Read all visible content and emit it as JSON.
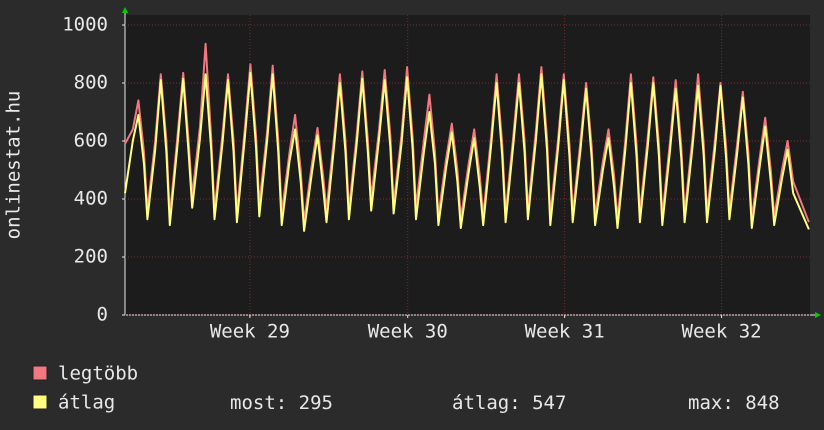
{
  "chart_data": {
    "type": "line",
    "ylabel": "onlinestat.hu",
    "x": [
      0,
      0.35,
      0.6,
      0.85,
      1,
      1.35,
      1.6,
      1.85,
      2,
      2.35,
      2.6,
      2.85,
      3,
      3.35,
      3.6,
      3.85,
      4,
      4.35,
      4.6,
      4.85,
      5,
      5.35,
      5.6,
      5.85,
      6,
      6.35,
      6.6,
      6.85,
      7,
      7.35,
      7.6,
      7.85,
      8,
      8.35,
      8.6,
      8.85,
      9,
      9.35,
      9.6,
      9.85,
      10,
      10.35,
      10.6,
      10.85,
      11,
      11.35,
      11.6,
      11.85,
      12,
      12.35,
      12.6,
      12.85,
      13,
      13.35,
      13.6,
      13.85,
      14,
      14.35,
      14.6,
      14.85,
      15,
      15.35,
      15.6,
      15.85,
      16,
      16.35,
      16.6,
      16.85,
      17,
      17.35,
      17.6,
      17.85,
      18,
      18.35,
      18.6,
      18.85,
      19,
      19.35,
      19.6,
      19.85,
      20,
      20.35,
      20.6,
      20.85,
      21,
      21.35,
      21.6,
      21.85,
      22,
      22.35,
      22.6,
      22.85,
      23,
      23.35,
      23.6,
      23.85,
      24,
      24.35,
      24.6,
      24.85,
      25,
      25.35,
      25.6,
      25.85,
      26,
      26.35,
      26.6,
      26.85,
      27,
      27.35,
      27.6,
      27.85,
      28,
      28.35,
      28.6,
      28.85,
      29,
      29.35,
      29.6,
      29.85,
      30.55
    ],
    "series": [
      {
        "name": "legtöbb",
        "color": "#f0787e",
        "values": [
          590,
          640,
          740,
          560,
          360,
          600,
          830,
          600,
          340,
          620,
          835,
          590,
          410,
          650,
          935,
          610,
          360,
          620,
          830,
          600,
          350,
          640,
          865,
          620,
          380,
          630,
          860,
          600,
          350,
          560,
          690,
          500,
          320,
          520,
          645,
          480,
          360,
          620,
          830,
          600,
          360,
          620,
          840,
          600,
          400,
          640,
          845,
          620,
          380,
          620,
          855,
          610,
          370,
          600,
          760,
          560,
          340,
          540,
          660,
          500,
          330,
          520,
          640,
          480,
          340,
          610,
          830,
          590,
          350,
          620,
          830,
          600,
          360,
          630,
          855,
          610,
          340,
          610,
          830,
          590,
          350,
          600,
          800,
          580,
          340,
          530,
          640,
          480,
          330,
          600,
          830,
          590,
          350,
          610,
          820,
          590,
          340,
          600,
          810,
          580,
          350,
          610,
          830,
          590,
          350,
          600,
          800,
          580,
          360,
          590,
          770,
          560,
          330,
          540,
          680,
          500,
          340,
          500,
          600,
          460,
          320
        ]
      },
      {
        "name": "átlag",
        "color": "#ffff80",
        "values": [
          420,
          600,
          690,
          520,
          330,
          570,
          810,
          560,
          310,
          590,
          815,
          550,
          370,
          610,
          830,
          570,
          330,
          590,
          810,
          560,
          320,
          610,
          835,
          580,
          340,
          600,
          830,
          560,
          310,
          530,
          640,
          460,
          290,
          490,
          620,
          440,
          320,
          590,
          800,
          560,
          330,
          590,
          815,
          560,
          360,
          610,
          810,
          580,
          350,
          590,
          820,
          570,
          330,
          560,
          700,
          520,
          310,
          510,
          630,
          460,
          300,
          490,
          610,
          440,
          310,
          580,
          800,
          550,
          320,
          590,
          800,
          560,
          330,
          600,
          830,
          570,
          310,
          580,
          810,
          550,
          320,
          570,
          780,
          540,
          310,
          500,
          610,
          440,
          300,
          570,
          800,
          550,
          320,
          580,
          800,
          550,
          310,
          570,
          780,
          540,
          320,
          580,
          790,
          550,
          320,
          570,
          790,
          540,
          330,
          560,
          750,
          520,
          300,
          510,
          650,
          460,
          310,
          470,
          570,
          420,
          295
        ]
      }
    ],
    "xlim": [
      0,
      30.6
    ],
    "xticks": [
      {
        "value": 5.58,
        "label": "Week 29"
      },
      {
        "value": 12.63,
        "label": "Week 30"
      },
      {
        "value": 19.64,
        "label": "Week 31"
      },
      {
        "value": 26.65,
        "label": "Week 32"
      }
    ],
    "ylim": [
      0,
      1000
    ],
    "yticks": [
      0,
      200,
      400,
      600,
      800,
      1000
    ],
    "grid": true,
    "stats": [
      {
        "label": "most:",
        "value": 295
      },
      {
        "label": "átlag:",
        "value": 547
      },
      {
        "label": "max:",
        "value": 848
      }
    ]
  }
}
